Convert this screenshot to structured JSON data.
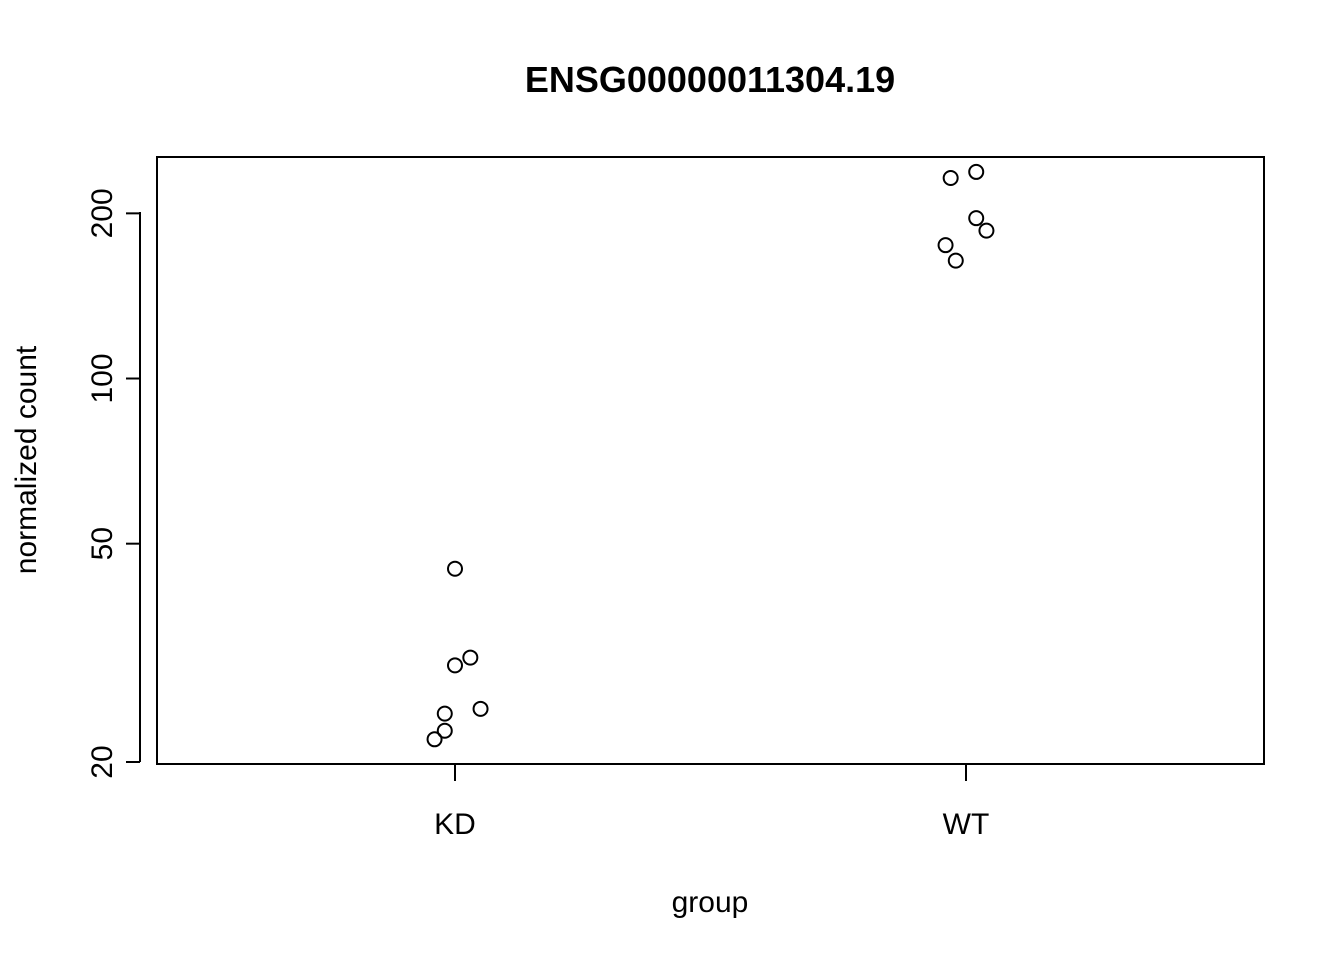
{
  "chart_data": {
    "type": "scatter",
    "title": "ENSG00000011304.19",
    "xlabel": "group",
    "ylabel": "normalized count",
    "categories": [
      "KD",
      "WT"
    ],
    "y_scale": "log",
    "ylim": [
      20,
      245
    ],
    "y_ticks": [
      20,
      50,
      100,
      200
    ],
    "y_tick_labels": [
      "20",
      "50",
      "100",
      "200"
    ],
    "grid": false,
    "legend": "none",
    "series": [
      {
        "points": [
          {
            "category": "KD",
            "jitter": 0.0,
            "y": 45
          },
          {
            "category": "KD",
            "jitter": 0.03,
            "y": 31
          },
          {
            "category": "KD",
            "jitter": 0.0,
            "y": 30
          },
          {
            "category": "KD",
            "jitter": 0.05,
            "y": 25
          },
          {
            "category": "KD",
            "jitter": -0.02,
            "y": 24.5
          },
          {
            "category": "KD",
            "jitter": -0.02,
            "y": 22.8
          },
          {
            "category": "KD",
            "jitter": -0.04,
            "y": 22
          },
          {
            "category": "WT",
            "jitter": 0.02,
            "y": 238
          },
          {
            "category": "WT",
            "jitter": -0.03,
            "y": 232
          },
          {
            "category": "WT",
            "jitter": 0.02,
            "y": 196
          },
          {
            "category": "WT",
            "jitter": 0.04,
            "y": 186
          },
          {
            "category": "WT",
            "jitter": -0.04,
            "y": 175
          },
          {
            "category": "WT",
            "jitter": -0.02,
            "y": 164
          }
        ]
      }
    ]
  }
}
